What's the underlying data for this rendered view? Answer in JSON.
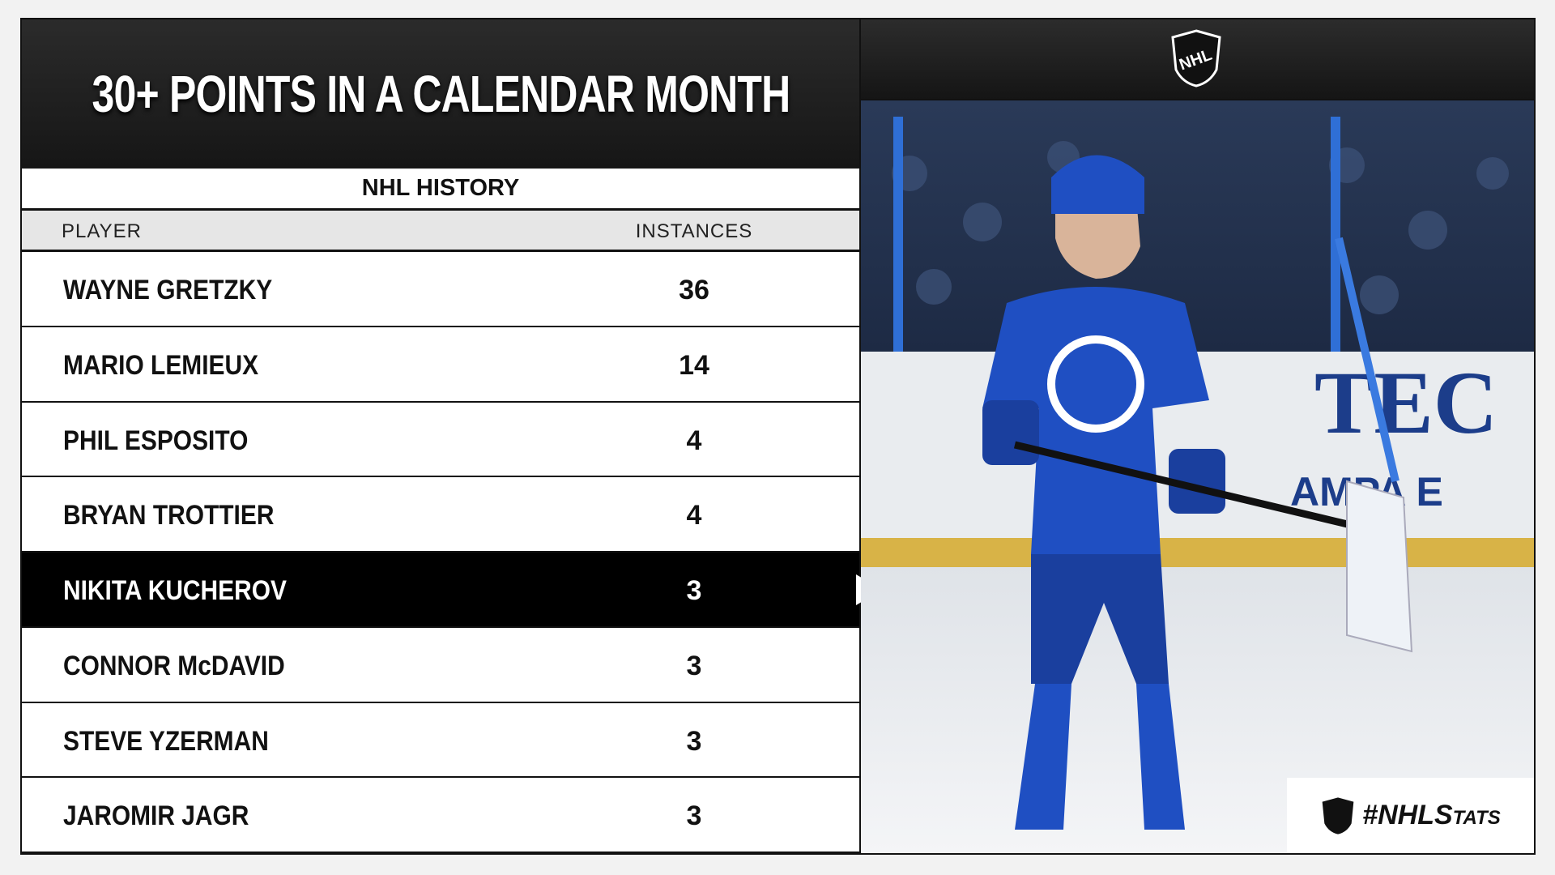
{
  "title": "30+ POINTS IN A CALENDAR MONTH",
  "subtitle": "NHL HISTORY",
  "table": {
    "headers": [
      "PLAYER",
      "INSTANCES"
    ],
    "rows": [
      [
        "WAYNE GRETZKY",
        36
      ],
      [
        "MARIO LEMIEUX",
        14
      ],
      [
        "PHIL ESPOSITO",
        4
      ],
      [
        "BRYAN TROTTIER",
        4
      ],
      [
        "NIKITA KUCHEROV",
        3
      ],
      [
        "CONNOR McDAVID",
        3
      ],
      [
        "STEVE YZERMAN",
        3
      ],
      [
        "JAROMIR JAGR",
        3
      ]
    ],
    "highlight_row": 4
  },
  "logo": "NHL",
  "hashtag": "#NHLStats"
}
